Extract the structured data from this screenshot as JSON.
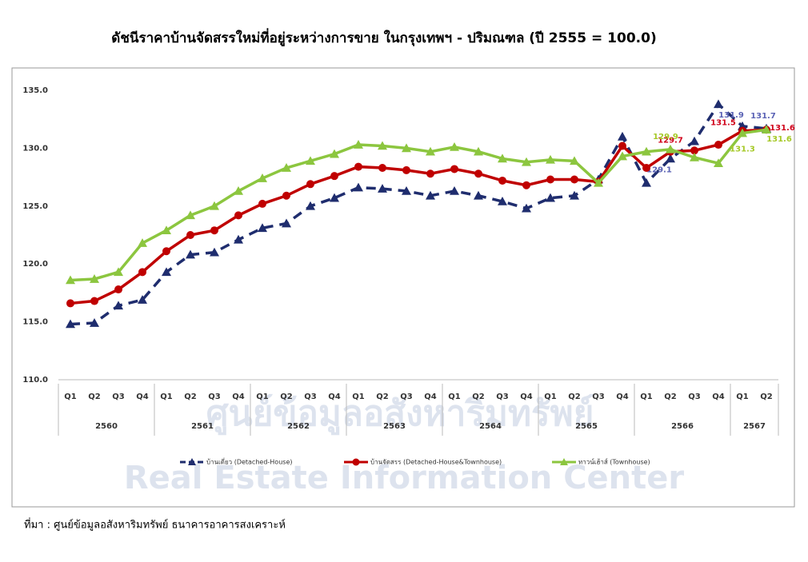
{
  "chart_data": {
    "type": "line",
    "title": "ดัชนีราคาบ้านจัดสรรใหม่ที่อยู่ระหว่างการขาย ในกรุงเทพฯ - ปริมณฑล (ปี 2555 = 100.0)",
    "source": "ที่มา : ศูนย์ข้อมูลอสังหาริมทรัพย์ ธนาคารอาคารสงเคราะห์",
    "watermark": [
      "ศูนย์ข้อมูลอสังหาริมทรัพย์",
      "Real Estate Information Center"
    ],
    "categories": [
      "Q1",
      "Q2",
      "Q3",
      "Q4",
      "Q1",
      "Q2",
      "Q3",
      "Q4",
      "Q1",
      "Q2",
      "Q3",
      "Q4",
      "Q1",
      "Q2",
      "Q3",
      "Q4",
      "Q1",
      "Q2",
      "Q3",
      "Q4",
      "Q1",
      "Q2",
      "Q3",
      "Q4",
      "Q1",
      "Q2",
      "Q3",
      "Q4",
      "Q1",
      "Q2"
    ],
    "groups": [
      "2560",
      "2561",
      "2562",
      "2563",
      "2564",
      "2565",
      "2566",
      "2567"
    ],
    "ylim": [
      110,
      135
    ],
    "yticks": [
      {
        "value": 110,
        "label": "110.0"
      },
      {
        "value": 115,
        "label": "115.0"
      },
      {
        "value": 120,
        "label": "120.0"
      },
      {
        "value": 125,
        "label": "125.0"
      },
      {
        "value": 130,
        "label": "130.0"
      },
      {
        "value": 135,
        "label": "135.0"
      }
    ],
    "series": [
      {
        "name": "บ้านเดี่ยว (Detached-House)",
        "color": "#1f2d6e",
        "label_color": "#5b63b5",
        "dashed": true,
        "values": [
          114.8,
          114.9,
          116.4,
          116.9,
          119.3,
          120.8,
          121.0,
          122.1,
          123.1,
          123.5,
          125.0,
          125.7,
          126.6,
          126.5,
          126.3,
          125.9,
          126.3,
          125.9,
          125.4,
          124.8,
          125.7,
          125.9,
          127.3,
          131.0,
          127.0,
          129.1,
          130.6,
          133.8,
          131.9,
          131.7
        ],
        "value_labels": [
          null,
          null,
          null,
          null,
          null,
          null,
          null,
          null,
          null,
          null,
          null,
          null,
          null,
          null,
          null,
          null,
          null,
          null,
          null,
          null,
          null,
          null,
          null,
          null,
          null,
          "129.1",
          null,
          null,
          "131.9",
          "131.7"
        ]
      },
      {
        "name": "บ้านจัดสรร (Detached-House&Townhouse)",
        "color": "#c00000",
        "label_color": "#d0021b",
        "dashed": false,
        "values": [
          116.6,
          116.8,
          117.8,
          119.3,
          121.1,
          122.5,
          122.9,
          124.2,
          125.2,
          125.9,
          126.9,
          127.6,
          128.4,
          128.3,
          128.1,
          127.8,
          128.2,
          127.8,
          127.2,
          126.8,
          127.3,
          127.3,
          127.1,
          130.2,
          128.3,
          129.7,
          129.8,
          130.3,
          131.5,
          131.6
        ],
        "value_labels": [
          null,
          null,
          null,
          null,
          null,
          null,
          null,
          null,
          null,
          null,
          null,
          null,
          null,
          null,
          null,
          null,
          null,
          null,
          null,
          null,
          null,
          null,
          null,
          null,
          null,
          "129.7",
          null,
          null,
          "131.5",
          "131.6"
        ]
      },
      {
        "name": "ทาวน์เฮ้าส์ (Townhouse)",
        "color": "#8cc63f",
        "label_color": "#a6c928",
        "dashed": false,
        "values": [
          118.6,
          118.7,
          119.3,
          121.8,
          122.9,
          124.2,
          125.0,
          126.3,
          127.4,
          128.3,
          128.9,
          129.5,
          130.3,
          130.2,
          130.0,
          129.7,
          130.1,
          129.7,
          129.1,
          128.8,
          129.0,
          128.9,
          127.0,
          129.3,
          129.7,
          129.9,
          129.2,
          128.7,
          131.3,
          131.6
        ],
        "value_labels": [
          null,
          null,
          null,
          null,
          null,
          null,
          null,
          null,
          null,
          null,
          null,
          null,
          null,
          null,
          null,
          null,
          null,
          null,
          null,
          null,
          null,
          null,
          null,
          null,
          null,
          "129.9",
          null,
          null,
          "131.3",
          "131.6"
        ]
      }
    ]
  }
}
